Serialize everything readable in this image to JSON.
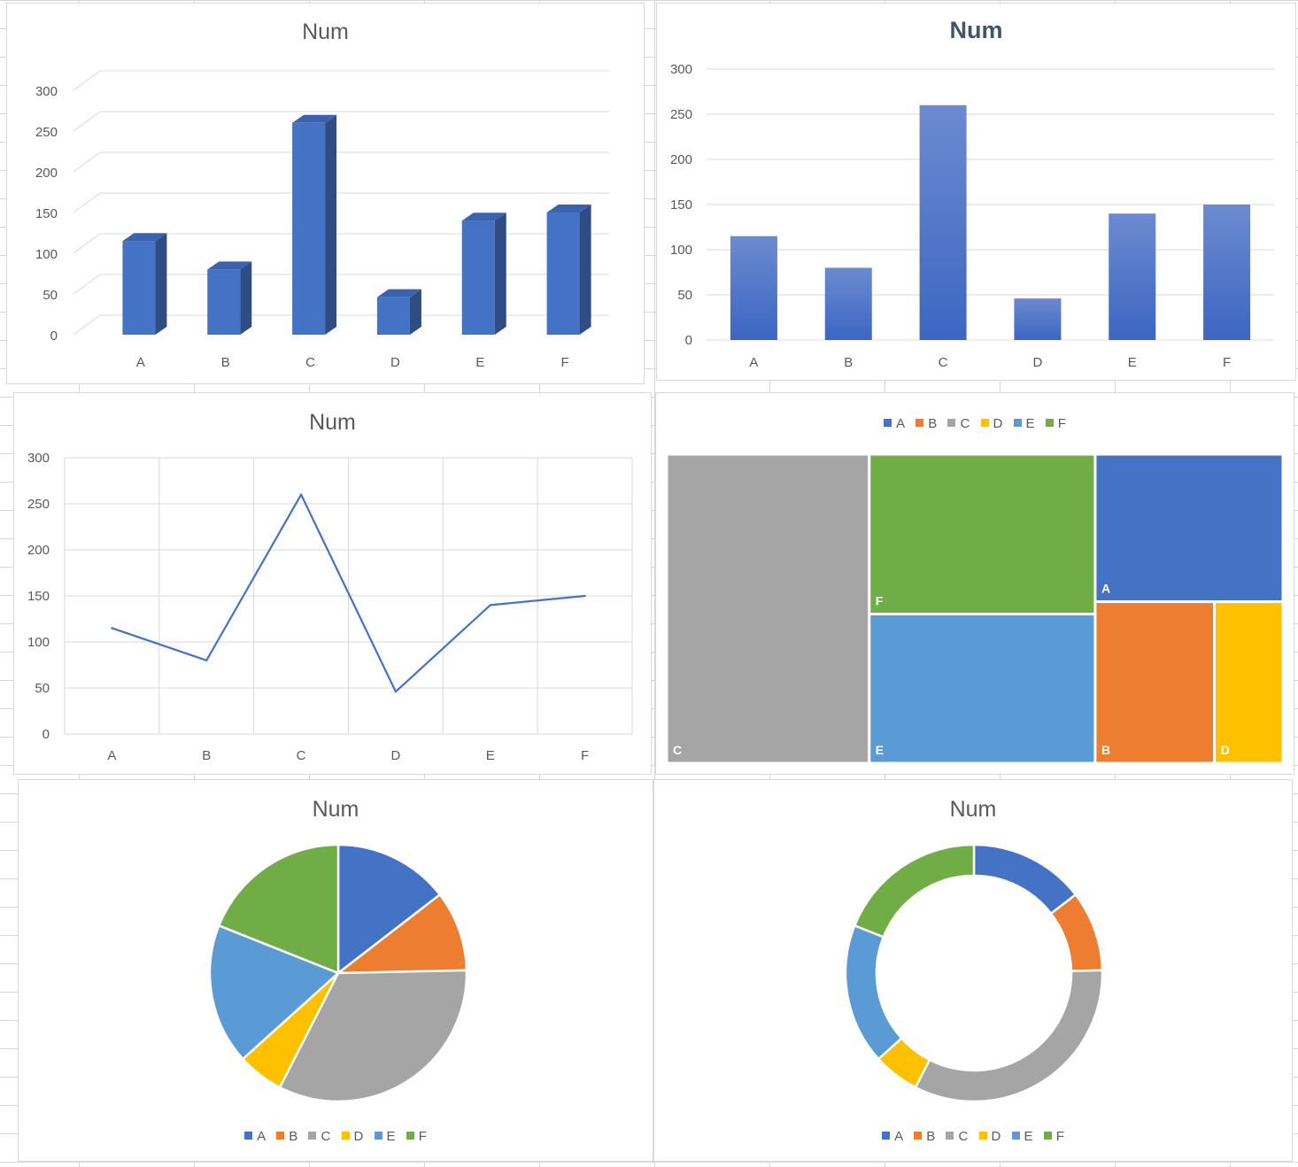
{
  "colors": {
    "A": "#4472c4",
    "B": "#ed7d31",
    "C": "#a5a5a5",
    "D": "#ffc000",
    "E": "#5b9bd5",
    "F": "#70ad47"
  },
  "chart_data": [
    {
      "type": "bar",
      "style": "3d-column",
      "title": "Num",
      "categories": [
        "A",
        "B",
        "C",
        "D",
        "E",
        "F"
      ],
      "values": [
        115,
        80,
        260,
        46,
        140,
        150
      ],
      "yticks": [
        "0",
        "50",
        "100",
        "150",
        "200",
        "250",
        "300"
      ],
      "ylim": [
        0,
        300
      ],
      "grid": true
    },
    {
      "type": "bar",
      "style": "gradient-column",
      "title": "Num",
      "categories": [
        "A",
        "B",
        "C",
        "D",
        "E",
        "F"
      ],
      "values": [
        115,
        80,
        260,
        46,
        140,
        150
      ],
      "yticks": [
        "0",
        "50",
        "100",
        "150",
        "200",
        "250",
        "300"
      ],
      "ylim": [
        0,
        300
      ],
      "grid": true
    },
    {
      "type": "line",
      "title": "Num",
      "categories": [
        "A",
        "B",
        "C",
        "D",
        "E",
        "F"
      ],
      "values": [
        115,
        80,
        260,
        46,
        140,
        150
      ],
      "yticks": [
        "0",
        "50",
        "100",
        "150",
        "200",
        "250",
        "300"
      ],
      "ylim": [
        0,
        300
      ],
      "grid": true
    },
    {
      "type": "treemap",
      "title": "",
      "categories": [
        "A",
        "B",
        "C",
        "D",
        "E",
        "F"
      ],
      "values": [
        115,
        80,
        260,
        46,
        140,
        150
      ],
      "legend": [
        "A",
        "B",
        "C",
        "D",
        "E",
        "F"
      ],
      "legend_position": "top"
    },
    {
      "type": "pie",
      "title": "Num",
      "categories": [
        "A",
        "B",
        "C",
        "D",
        "E",
        "F"
      ],
      "values": [
        115,
        80,
        260,
        46,
        140,
        150
      ],
      "legend": [
        "A",
        "B",
        "C",
        "D",
        "E",
        "F"
      ],
      "legend_position": "bottom"
    },
    {
      "type": "doughnut",
      "title": "Num",
      "categories": [
        "A",
        "B",
        "C",
        "D",
        "E",
        "F"
      ],
      "values": [
        115,
        80,
        260,
        46,
        140,
        150
      ],
      "legend": [
        "A",
        "B",
        "C",
        "D",
        "E",
        "F"
      ],
      "legend_position": "bottom"
    }
  ]
}
